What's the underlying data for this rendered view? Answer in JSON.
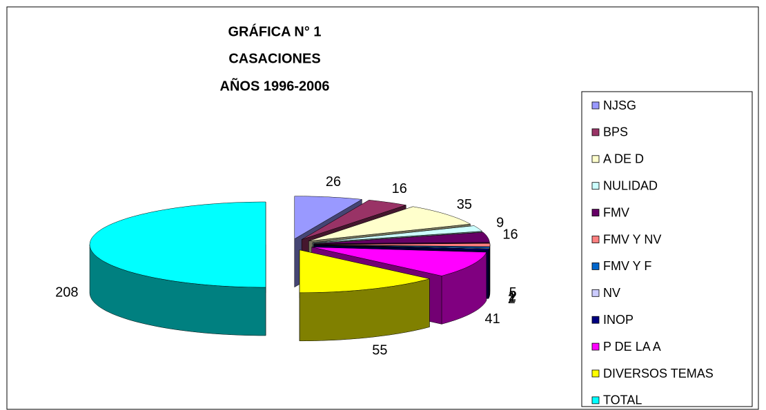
{
  "chart_data": {
    "type": "pie",
    "title": [
      "GRÁFICA N° 1",
      "CASACIONES",
      "AÑOS 1996-2006"
    ],
    "categories": [
      "NJSG",
      "BPS",
      "A DE D",
      "NULIDAD",
      "FMV",
      "FMV Y NV",
      "FMV Y F",
      "NV",
      "INOP",
      "P DE LA A",
      "DIVERSOS TEMAS",
      "TOTAL"
    ],
    "values": [
      26,
      16,
      35,
      9,
      16,
      5,
      2,
      1,
      2,
      41,
      55,
      208
    ],
    "colors": [
      "#9999ff",
      "#993366",
      "#ffffcc",
      "#ccffff",
      "#660066",
      "#ff8080",
      "#0066cc",
      "#ccccff",
      "#000080",
      "#ff00ff",
      "#ffff00",
      "#00ffff"
    ],
    "legend": "right",
    "three_d": true
  }
}
